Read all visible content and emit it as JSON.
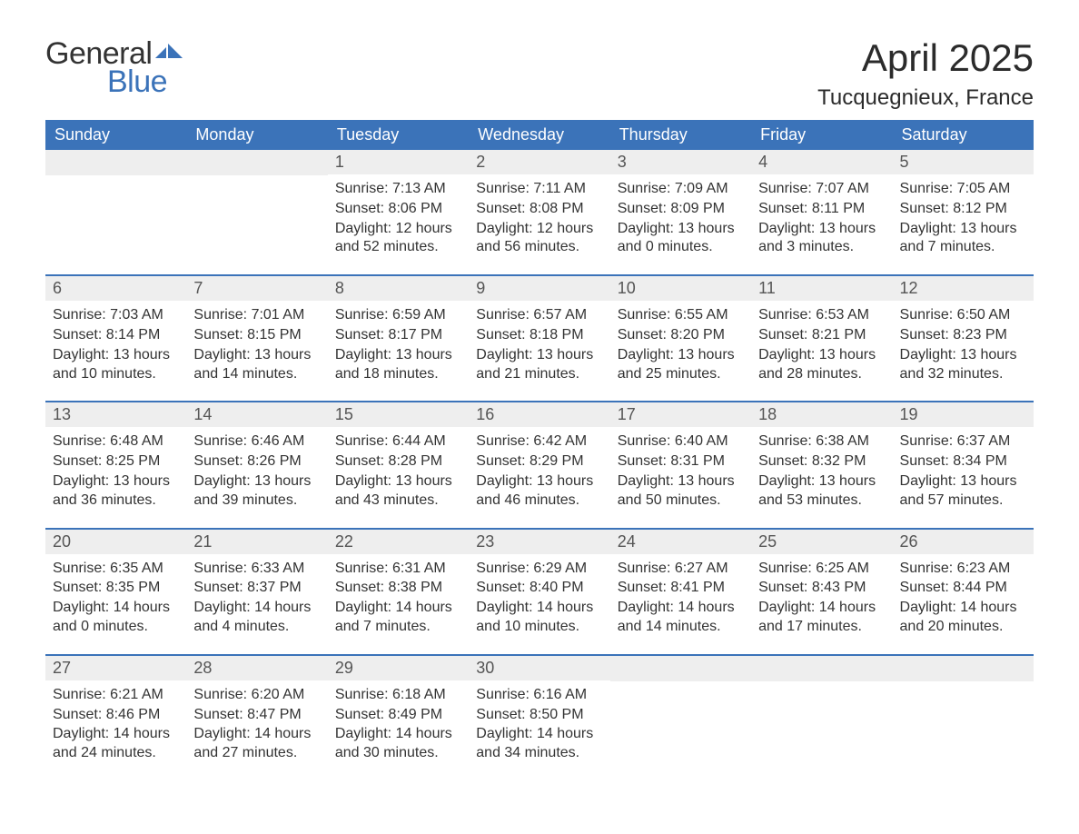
{
  "logo": {
    "word1": "General",
    "word2": "Blue"
  },
  "title": "April 2025",
  "location": "Tucquegnieux, France",
  "colors": {
    "brand_blue": "#3b73b9",
    "header_text": "#ffffff",
    "daynum_bg": "#eeeeee",
    "text": "#333333",
    "background": "#ffffff"
  },
  "calendar": {
    "type": "table",
    "day_headers": [
      "Sunday",
      "Monday",
      "Tuesday",
      "Wednesday",
      "Thursday",
      "Friday",
      "Saturday"
    ],
    "weeks": [
      [
        null,
        null,
        {
          "n": "1",
          "sunrise": "7:13 AM",
          "sunset": "8:06 PM",
          "daylight": "12 hours and 52 minutes."
        },
        {
          "n": "2",
          "sunrise": "7:11 AM",
          "sunset": "8:08 PM",
          "daylight": "12 hours and 56 minutes."
        },
        {
          "n": "3",
          "sunrise": "7:09 AM",
          "sunset": "8:09 PM",
          "daylight": "13 hours and 0 minutes."
        },
        {
          "n": "4",
          "sunrise": "7:07 AM",
          "sunset": "8:11 PM",
          "daylight": "13 hours and 3 minutes."
        },
        {
          "n": "5",
          "sunrise": "7:05 AM",
          "sunset": "8:12 PM",
          "daylight": "13 hours and 7 minutes."
        }
      ],
      [
        {
          "n": "6",
          "sunrise": "7:03 AM",
          "sunset": "8:14 PM",
          "daylight": "13 hours and 10 minutes."
        },
        {
          "n": "7",
          "sunrise": "7:01 AM",
          "sunset": "8:15 PM",
          "daylight": "13 hours and 14 minutes."
        },
        {
          "n": "8",
          "sunrise": "6:59 AM",
          "sunset": "8:17 PM",
          "daylight": "13 hours and 18 minutes."
        },
        {
          "n": "9",
          "sunrise": "6:57 AM",
          "sunset": "8:18 PM",
          "daylight": "13 hours and 21 minutes."
        },
        {
          "n": "10",
          "sunrise": "6:55 AM",
          "sunset": "8:20 PM",
          "daylight": "13 hours and 25 minutes."
        },
        {
          "n": "11",
          "sunrise": "6:53 AM",
          "sunset": "8:21 PM",
          "daylight": "13 hours and 28 minutes."
        },
        {
          "n": "12",
          "sunrise": "6:50 AM",
          "sunset": "8:23 PM",
          "daylight": "13 hours and 32 minutes."
        }
      ],
      [
        {
          "n": "13",
          "sunrise": "6:48 AM",
          "sunset": "8:25 PM",
          "daylight": "13 hours and 36 minutes."
        },
        {
          "n": "14",
          "sunrise": "6:46 AM",
          "sunset": "8:26 PM",
          "daylight": "13 hours and 39 minutes."
        },
        {
          "n": "15",
          "sunrise": "6:44 AM",
          "sunset": "8:28 PM",
          "daylight": "13 hours and 43 minutes."
        },
        {
          "n": "16",
          "sunrise": "6:42 AM",
          "sunset": "8:29 PM",
          "daylight": "13 hours and 46 minutes."
        },
        {
          "n": "17",
          "sunrise": "6:40 AM",
          "sunset": "8:31 PM",
          "daylight": "13 hours and 50 minutes."
        },
        {
          "n": "18",
          "sunrise": "6:38 AM",
          "sunset": "8:32 PM",
          "daylight": "13 hours and 53 minutes."
        },
        {
          "n": "19",
          "sunrise": "6:37 AM",
          "sunset": "8:34 PM",
          "daylight": "13 hours and 57 minutes."
        }
      ],
      [
        {
          "n": "20",
          "sunrise": "6:35 AM",
          "sunset": "8:35 PM",
          "daylight": "14 hours and 0 minutes."
        },
        {
          "n": "21",
          "sunrise": "6:33 AM",
          "sunset": "8:37 PM",
          "daylight": "14 hours and 4 minutes."
        },
        {
          "n": "22",
          "sunrise": "6:31 AM",
          "sunset": "8:38 PM",
          "daylight": "14 hours and 7 minutes."
        },
        {
          "n": "23",
          "sunrise": "6:29 AM",
          "sunset": "8:40 PM",
          "daylight": "14 hours and 10 minutes."
        },
        {
          "n": "24",
          "sunrise": "6:27 AM",
          "sunset": "8:41 PM",
          "daylight": "14 hours and 14 minutes."
        },
        {
          "n": "25",
          "sunrise": "6:25 AM",
          "sunset": "8:43 PM",
          "daylight": "14 hours and 17 minutes."
        },
        {
          "n": "26",
          "sunrise": "6:23 AM",
          "sunset": "8:44 PM",
          "daylight": "14 hours and 20 minutes."
        }
      ],
      [
        {
          "n": "27",
          "sunrise": "6:21 AM",
          "sunset": "8:46 PM",
          "daylight": "14 hours and 24 minutes."
        },
        {
          "n": "28",
          "sunrise": "6:20 AM",
          "sunset": "8:47 PM",
          "daylight": "14 hours and 27 minutes."
        },
        {
          "n": "29",
          "sunrise": "6:18 AM",
          "sunset": "8:49 PM",
          "daylight": "14 hours and 30 minutes."
        },
        {
          "n": "30",
          "sunrise": "6:16 AM",
          "sunset": "8:50 PM",
          "daylight": "14 hours and 34 minutes."
        },
        null,
        null,
        null
      ]
    ],
    "labels": {
      "sunrise": "Sunrise: ",
      "sunset": "Sunset: ",
      "daylight": "Daylight: "
    }
  }
}
